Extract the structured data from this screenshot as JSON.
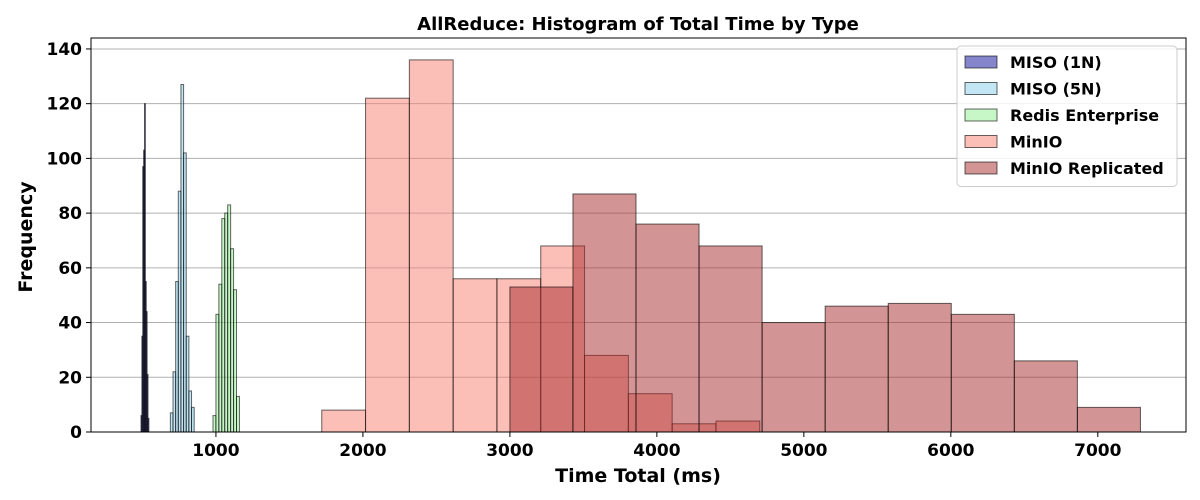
{
  "chart_data": {
    "type": "histogram",
    "title": "AllReduce: Histogram of Total Time by Type",
    "xlabel": "Time Total (ms)",
    "ylabel": "Frequency",
    "xlim": [
      150,
      7600
    ],
    "ylim": [
      0,
      144
    ],
    "xticks": [
      1000,
      2000,
      3000,
      4000,
      5000,
      6000,
      7000
    ],
    "yticks": [
      0,
      20,
      40,
      60,
      80,
      100,
      120,
      140
    ],
    "grid": "y-major",
    "legend_position": "top-right",
    "series": [
      {
        "name": "MISO (1N)",
        "color": "#3333aa",
        "alpha": 0.6,
        "edge_color": "#000000",
        "bin_start": 490,
        "bin_width": 6,
        "counts": [
          6,
          35,
          97,
          103,
          120,
          55,
          44,
          21,
          5
        ]
      },
      {
        "name": "MISO (5N)",
        "color": "#87ceeb",
        "alpha": 0.5,
        "edge_color": "#000000",
        "bin_start": 690,
        "bin_width": 18,
        "counts": [
          7,
          22,
          55,
          88,
          127,
          102,
          35,
          15,
          9
        ]
      },
      {
        "name": "Redis Enterprise",
        "color": "#90ee90",
        "alpha": 0.5,
        "edge_color": "#000000",
        "bin_start": 980,
        "bin_width": 20,
        "counts": [
          6,
          43,
          54,
          78,
          80,
          83,
          67,
          52,
          13
        ]
      },
      {
        "name": "MinIO",
        "color": "#fa8072",
        "alpha": 0.5,
        "edge_color": "#000000",
        "bin_start": 1720,
        "bin_width": 298,
        "counts": [
          8,
          122,
          136,
          56,
          56,
          68,
          28,
          14,
          3,
          4
        ]
      },
      {
        "name": "MinIO Replicated",
        "color": "#a52a2a",
        "alpha": 0.5,
        "edge_color": "#000000",
        "bin_start": 3000,
        "bin_width": 429,
        "counts": [
          53,
          87,
          76,
          68,
          40,
          46,
          47,
          43,
          26,
          9
        ]
      }
    ]
  }
}
